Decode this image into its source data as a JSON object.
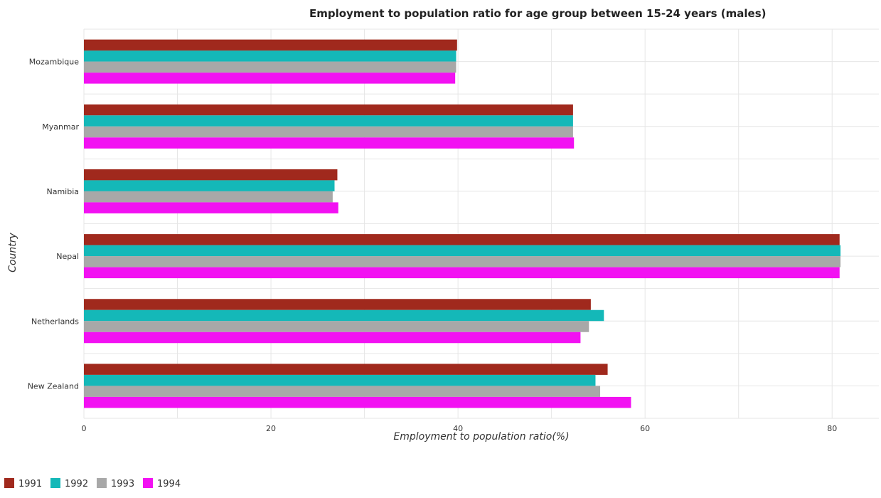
{
  "chart_data": {
    "type": "bar",
    "orientation": "horizontal",
    "title": "Employment to population ratio for age group between 15-24 years (males)",
    "xlabel": "Employment to population ratio(%)",
    "ylabel": "Country",
    "xlim": [
      0,
      85
    ],
    "xticks": [
      0,
      20,
      40,
      60,
      80
    ],
    "grid": true,
    "legend_position": "bottom-left",
    "categories": [
      "Mozambique",
      "Myanmar",
      "Namibia",
      "Nepal",
      "Netherlands",
      "New Zealand"
    ],
    "series": [
      {
        "name": "1991",
        "color": "#a0291d",
        "values": [
          39.9,
          52.3,
          27.1,
          80.8,
          54.2,
          56.0
        ]
      },
      {
        "name": "1992",
        "color": "#14b8b8",
        "values": [
          39.8,
          52.3,
          26.8,
          80.9,
          55.6,
          54.7
        ]
      },
      {
        "name": "1993",
        "color": "#a8a8a8",
        "values": [
          39.8,
          52.3,
          26.6,
          80.9,
          54.0,
          55.2
        ]
      },
      {
        "name": "1994",
        "color": "#f211f2",
        "values": [
          39.7,
          52.4,
          27.2,
          80.8,
          53.1,
          58.5
        ]
      }
    ]
  }
}
